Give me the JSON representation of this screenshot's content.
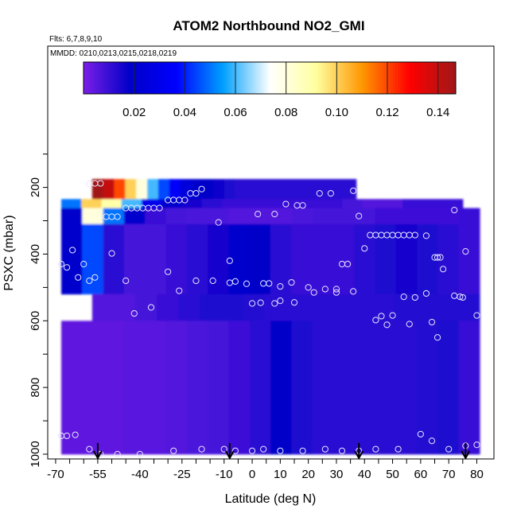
{
  "chart_data": {
    "type": "heatmap",
    "title": "ATOM2 Northbound NO2_GMI",
    "flights_label": "Flts: 6,7,8,9,10",
    "dates_label": "MMDD: 0210,0213,0215,0218,0219",
    "xlabel": "Latitude (deg N)",
    "ylabel": "PSXC (mbar)",
    "xlim": [
      -70,
      82
    ],
    "ylim": [
      1000,
      40
    ],
    "y_reversed": true,
    "grid": false,
    "x_ticks": [
      -70,
      -55,
      -40,
      -25,
      -10,
      0,
      10,
      20,
      30,
      40,
      50,
      60,
      70,
      80
    ],
    "y_ticks": [
      200,
      400,
      600,
      800,
      1000
    ],
    "colorbar": {
      "placement": "top",
      "range": [
        0.0,
        0.147
      ],
      "ticks": [
        0.02,
        0.04,
        0.06,
        0.08,
        0.1,
        0.12,
        0.14
      ],
      "tick_labels": [
        "0.02",
        "0.04",
        "0.06",
        "0.08",
        "0.10",
        "0.12",
        "0.14"
      ],
      "colors": [
        "#7a1fe6",
        "#0000c8",
        "#0000ff",
        "#00a0ff",
        "#ffffff",
        "#ffffa0",
        "#ff9600",
        "#ff0000",
        "#a01818"
      ]
    },
    "lat_bins": [
      -68,
      -64,
      -60,
      -56,
      -52,
      -48,
      -44,
      -40,
      -36,
      -32,
      -28,
      -24,
      -20,
      -16,
      -12,
      -8,
      -4,
      0,
      4,
      8,
      12,
      16,
      20,
      24,
      28,
      32,
      36,
      40,
      44,
      48,
      52,
      56,
      60,
      64,
      68,
      72,
      76,
      80
    ],
    "pressure_bins": [
      150,
      200,
      250,
      300,
      350,
      400,
      450,
      500,
      550,
      600,
      650,
      700,
      750,
      800,
      850,
      900,
      950,
      1000
    ],
    "field_layers": [
      {
        "p_top": 175,
        "p_bot": 235,
        "lat_min": -57,
        "lat_max": 37,
        "values": [
          0.147,
          0.14,
          0.12,
          0.1,
          0.08,
          0.06,
          0.045,
          0.035,
          0.025,
          0.02,
          0.018,
          0.016,
          0.014,
          0.012,
          0.012,
          0.012,
          0.012,
          0.012,
          0.012,
          0.012,
          0.012,
          0.012,
          0.012,
          0.012
        ]
      },
      {
        "p_top": 235,
        "p_bot": 262,
        "lat_min": -68,
        "lat_max": 75,
        "values": [
          0.05,
          0.1,
          0.09,
          0.06,
          0.03,
          0.02,
          0.015,
          0.012,
          0.01,
          0.01,
          0.01,
          0.01,
          0.01,
          0.01,
          0.008,
          0.006,
          0.006,
          0.01,
          0.01,
          0.01
        ]
      },
      {
        "p_top": 262,
        "p_bot": 310,
        "lat_min": -68,
        "lat_max": 81,
        "values": [
          0.02,
          0.08,
          0.05,
          0.02,
          0.01,
          0.008,
          0.007,
          0.007,
          0.006,
          0.006,
          0.006,
          0.007,
          0.008,
          0.008,
          0.008,
          0.009,
          0.009,
          0.009,
          0.009,
          0.01
        ]
      },
      {
        "p_top": 310,
        "p_bot": 520,
        "lat_min": -68,
        "lat_max": 81,
        "values": [
          0.02,
          0.045,
          0.012,
          0.008,
          0.008,
          0.01,
          0.012,
          0.015,
          0.02,
          0.018,
          0.012,
          0.01,
          0.01,
          0.01,
          0.012,
          0.014,
          0.015,
          0.014,
          0.012,
          0.01
        ]
      },
      {
        "p_top": 520,
        "p_bot": 600,
        "lat_min": -57,
        "lat_max": 81,
        "values": [
          0.006,
          0.006,
          0.008,
          0.01,
          0.012,
          0.014,
          0.014,
          0.013,
          0.012,
          0.012,
          0.012,
          0.012,
          0.012,
          0.012,
          0.013,
          0.013,
          0.013,
          0.013
        ]
      },
      {
        "p_top": 600,
        "p_bot": 1000,
        "lat_min": -68,
        "lat_max": 81,
        "values": [
          0.004,
          0.004,
          0.004,
          0.005,
          0.005,
          0.006,
          0.007,
          0.008,
          0.009,
          0.012,
          0.018,
          0.014,
          0.012,
          0.012,
          0.012,
          0.012,
          0.012,
          0.013,
          0.014,
          0.01
        ]
      }
    ],
    "flight_track_points": [
      [
        -58,
        190
      ],
      [
        -56,
        188
      ],
      [
        -54,
        188
      ],
      [
        -52,
        288
      ],
      [
        -50,
        288
      ],
      [
        -48,
        288
      ],
      [
        -45,
        262
      ],
      [
        -43,
        262
      ],
      [
        -41,
        262
      ],
      [
        -39,
        262
      ],
      [
        -37,
        262
      ],
      [
        -35,
        262
      ],
      [
        -33,
        262
      ],
      [
        -30,
        238
      ],
      [
        -28,
        238
      ],
      [
        -26,
        238
      ],
      [
        -24,
        238
      ],
      [
        -22,
        218
      ],
      [
        -20,
        218
      ],
      [
        -18,
        205
      ],
      [
        -12,
        305
      ],
      [
        -8,
        420
      ],
      [
        -6,
        482
      ],
      [
        -2,
        489
      ],
      [
        2,
        280
      ],
      [
        4,
        488
      ],
      [
        8,
        280
      ],
      [
        10,
        497
      ],
      [
        12,
        250
      ],
      [
        14,
        485
      ],
      [
        16,
        254
      ],
      [
        18,
        254
      ],
      [
        20,
        500
      ],
      [
        24,
        218
      ],
      [
        26,
        505
      ],
      [
        28,
        218
      ],
      [
        30,
        505
      ],
      [
        32,
        430
      ],
      [
        34,
        430
      ],
      [
        36,
        210
      ],
      [
        38,
        286
      ],
      [
        40,
        383
      ],
      [
        42,
        343
      ],
      [
        44,
        343
      ],
      [
        46,
        343
      ],
      [
        48,
        343
      ],
      [
        50,
        343
      ],
      [
        52,
        343
      ],
      [
        54,
        343
      ],
      [
        56,
        343
      ],
      [
        58,
        343
      ],
      [
        62,
        345
      ],
      [
        65,
        410
      ],
      [
        66,
        410
      ],
      [
        67,
        410
      ],
      [
        68,
        445
      ],
      [
        72,
        268
      ],
      [
        74,
        528
      ],
      [
        76,
        392
      ],
      [
        -68,
        430
      ],
      [
        -66,
        440
      ],
      [
        -64,
        388
      ],
      [
        -62,
        470
      ],
      [
        -60,
        430
      ],
      [
        -58,
        480
      ],
      [
        -56,
        470
      ],
      [
        -50,
        398
      ],
      [
        -45,
        480
      ],
      [
        -42,
        578
      ],
      [
        -36,
        560
      ],
      [
        -30,
        453
      ],
      [
        -26,
        510
      ],
      [
        -20,
        480
      ],
      [
        -14,
        480
      ],
      [
        -8,
        486
      ],
      [
        0,
        548
      ],
      [
        3,
        546
      ],
      [
        6,
        488
      ],
      [
        8,
        548
      ],
      [
        10,
        540
      ],
      [
        15,
        545
      ],
      [
        22,
        515
      ],
      [
        30,
        515
      ],
      [
        36,
        512
      ],
      [
        44,
        598
      ],
      [
        46,
        586
      ],
      [
        48,
        612
      ],
      [
        50,
        584
      ],
      [
        54,
        528
      ],
      [
        56,
        610
      ],
      [
        58,
        530
      ],
      [
        62,
        518
      ],
      [
        64,
        604
      ],
      [
        66,
        650
      ],
      [
        72,
        525
      ],
      [
        75,
        530
      ],
      [
        80,
        584
      ],
      [
        -68,
        945
      ],
      [
        -66,
        945
      ],
      [
        -63,
        942
      ],
      [
        -58,
        985
      ],
      [
        -54,
        1000
      ],
      [
        -48,
        1000
      ],
      [
        -40,
        1000
      ],
      [
        -28,
        990
      ],
      [
        -18,
        985
      ],
      [
        -10,
        985
      ],
      [
        -6,
        990
      ],
      [
        0,
        990
      ],
      [
        4,
        985
      ],
      [
        10,
        990
      ],
      [
        18,
        990
      ],
      [
        26,
        985
      ],
      [
        32,
        990
      ],
      [
        38,
        990
      ],
      [
        44,
        985
      ],
      [
        52,
        985
      ],
      [
        60,
        940
      ],
      [
        64,
        960
      ],
      [
        70,
        985
      ],
      [
        76,
        975
      ],
      [
        80,
        972
      ]
    ],
    "arrows_lat": [
      -55,
      -8,
      38,
      76
    ]
  }
}
